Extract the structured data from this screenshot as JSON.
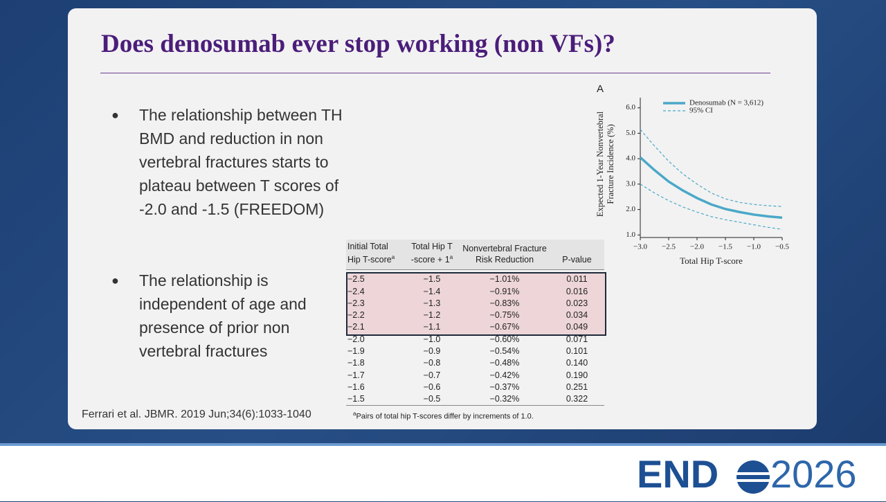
{
  "title": "Does denosumab ever stop working (non VFs)?",
  "bullets": [
    "The relationship between TH BMD and reduction in non vertebral fractures starts to plateau between T scores of -2.0 and -1.5 (FREEDOM)",
    "The relationship is independent of age and presence of prior non vertebral fractures"
  ],
  "citation": "Ferrari et al. JBMR. 2019 Jun;34(6):1033-1040",
  "table": {
    "headers": [
      [
        "Initial Total",
        "Hip T-score"
      ],
      [
        "Total Hip T",
        "-score + 1"
      ],
      [
        "Nonvertebral Fracture",
        "Risk Reduction"
      ],
      [
        "",
        "P-value"
      ]
    ],
    "header_marked": [
      0,
      1
    ],
    "marker": "a",
    "rows": [
      [
        "−2.5",
        "−1.5",
        "−1.01%",
        "0.011"
      ],
      [
        "−2.4",
        "−1.4",
        "−0.91%",
        "0.016"
      ],
      [
        "−2.3",
        "−1.3",
        "−0.83%",
        "0.023"
      ],
      [
        "−2.2",
        "−1.2",
        "−0.75%",
        "0.034"
      ],
      [
        "−2.1",
        "−1.1",
        "−0.67%",
        "0.049"
      ],
      [
        "−2.0",
        "−1.0",
        "−0.60%",
        "0.071"
      ],
      [
        "−1.9",
        "−0.9",
        "−0.54%",
        "0.101"
      ],
      [
        "−1.8",
        "−0.8",
        "−0.48%",
        "0.140"
      ],
      [
        "−1.7",
        "−0.7",
        "−0.42%",
        "0.190"
      ],
      [
        "−1.6",
        "−0.6",
        "−0.37%",
        "0.251"
      ],
      [
        "−1.5",
        "−0.5",
        "−0.32%",
        "0.322"
      ]
    ],
    "highlighted_rows": [
      0,
      1,
      2,
      3,
      4
    ],
    "footnote": "Pairs of total hip T-scores differ by increments of 1.0."
  },
  "chart_data": {
    "type": "line",
    "panel_label": "A",
    "ylabel": [
      "Expected 1-Year Nonvertebral",
      "Fracture Incidence (%)"
    ],
    "xlabel": "Total Hip T-score",
    "x": [
      -3.0,
      -2.75,
      -2.5,
      -2.25,
      -2.0,
      -1.75,
      -1.5,
      -1.25,
      -1.0,
      -0.75,
      -0.5
    ],
    "series": [
      {
        "name": "Denosumab (N = 3,612)",
        "color": "#4aa8c8",
        "values": [
          4.05,
          3.55,
          3.1,
          2.75,
          2.45,
          2.2,
          2.02,
          1.9,
          1.8,
          1.73,
          1.68
        ]
      }
    ],
    "ci": {
      "name": "95% CI",
      "color": "#4aa8c8",
      "upper": [
        5.15,
        4.5,
        3.9,
        3.4,
        3.0,
        2.65,
        2.42,
        2.28,
        2.2,
        2.15,
        2.12
      ],
      "lower": [
        3.0,
        2.65,
        2.35,
        2.1,
        1.9,
        1.72,
        1.6,
        1.5,
        1.4,
        1.3,
        1.22
      ]
    },
    "xlim": [
      -3.0,
      -0.5
    ],
    "ylim": [
      0.9,
      6.4
    ],
    "xticks": [
      {
        "value": -3.0,
        "label": "−3.0"
      },
      {
        "value": -2.5,
        "label": "−2.5"
      },
      {
        "value": -2.0,
        "label": "−2.0"
      },
      {
        "value": -1.5,
        "label": "−1.5"
      },
      {
        "value": -1.0,
        "label": "−1.0"
      },
      {
        "value": -0.5,
        "label": "−0.5"
      }
    ],
    "yticks": [
      {
        "value": 1,
        "label": "1.0"
      },
      {
        "value": 2,
        "label": "2.0"
      },
      {
        "value": 3,
        "label": "3.0"
      },
      {
        "value": 4,
        "label": "4.0"
      },
      {
        "value": 5,
        "label": "5.0"
      },
      {
        "value": 6,
        "label": "6.0"
      }
    ]
  },
  "logo": {
    "left": "END",
    "right": "2026"
  }
}
